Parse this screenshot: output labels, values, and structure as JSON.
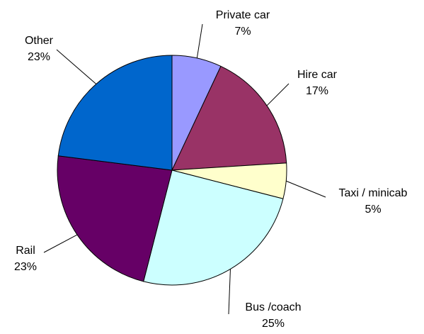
{
  "chart_data": {
    "type": "pie",
    "title": "",
    "slices": [
      {
        "name": "Private car",
        "value": 7,
        "label": "7%",
        "color": "#9999FF"
      },
      {
        "name": "Hire car",
        "value": 17,
        "label": "17%",
        "color": "#993366"
      },
      {
        "name": "Taxi / minicab",
        "value": 5,
        "label": "5%",
        "color": "#FFFFCC"
      },
      {
        "name": "Bus /coach",
        "value": 25,
        "label": "25%",
        "color": "#CCFFFF"
      },
      {
        "name": "Rail",
        "value": 23,
        "label": "23%",
        "color": "#660066"
      },
      {
        "name": "Other",
        "value": 23,
        "label": "23%",
        "color": "#0066CC"
      }
    ]
  }
}
